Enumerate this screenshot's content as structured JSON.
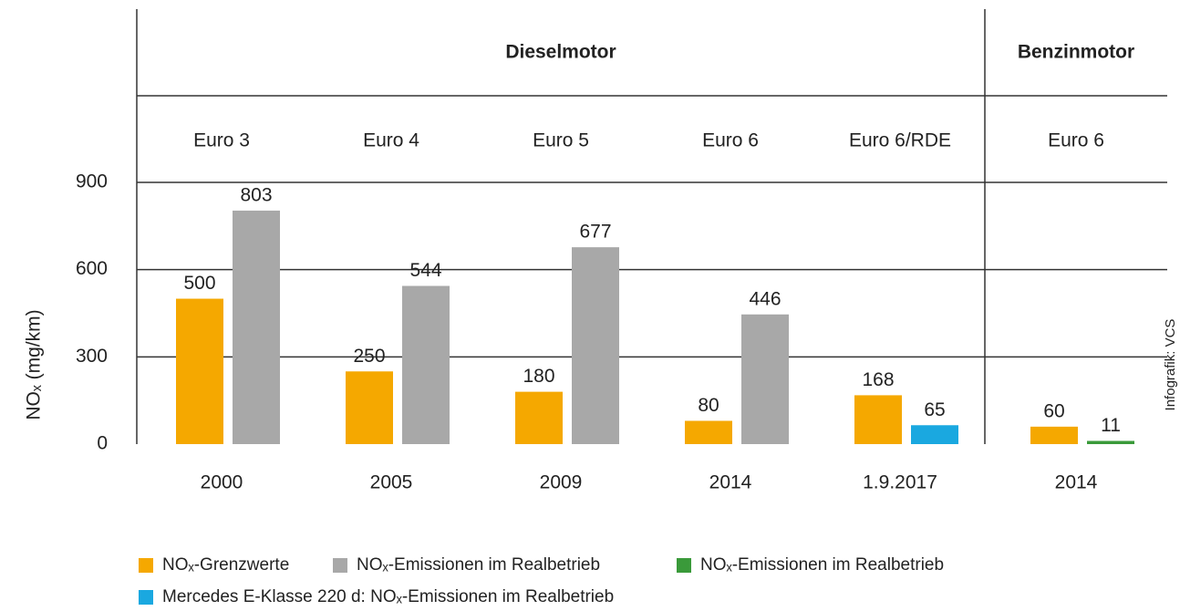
{
  "chart_data": {
    "type": "bar",
    "sections": [
      {
        "title": "Dieselmotor",
        "categories": [
          {
            "norm": "Euro 3",
            "label": "2000"
          },
          {
            "norm": "Euro 4",
            "label": "2005"
          },
          {
            "norm": "Euro 5",
            "label": "2009"
          },
          {
            "norm": "Euro 6",
            "label": "2014"
          },
          {
            "norm": "Euro 6/RDE",
            "label": "1.9.2017"
          }
        ]
      },
      {
        "title": "Benzinmotor",
        "categories": [
          {
            "norm": "Euro 6",
            "label": "2014"
          }
        ]
      }
    ],
    "series": [
      {
        "name": "NOₓ-Grenzwerte",
        "color": "#f5a800",
        "values": [
          500,
          250,
          180,
          80,
          168,
          60
        ]
      },
      {
        "name": "NOₓ-Emissionen im Realbetrieb",
        "color": "#a8a8a8",
        "values": [
          803,
          544,
          677,
          446,
          null,
          null
        ]
      },
      {
        "name": "NOₓ-Emissionen im Realbetrieb",
        "color": "#3a9a3a",
        "values": [
          null,
          null,
          null,
          null,
          null,
          11
        ]
      },
      {
        "name": "Mercedes E-Klasse 220 d: NOₓ-Emissionen im Realbetrieb",
        "color": "#1aa8e0",
        "values": [
          null,
          null,
          null,
          null,
          65,
          null
        ]
      }
    ],
    "y_label": "NOₓ (mg/km)",
    "ylim": [
      0,
      900
    ],
    "yticks": [
      0,
      300,
      600,
      900
    ],
    "grid": true,
    "source": "Infografik: VCS"
  }
}
